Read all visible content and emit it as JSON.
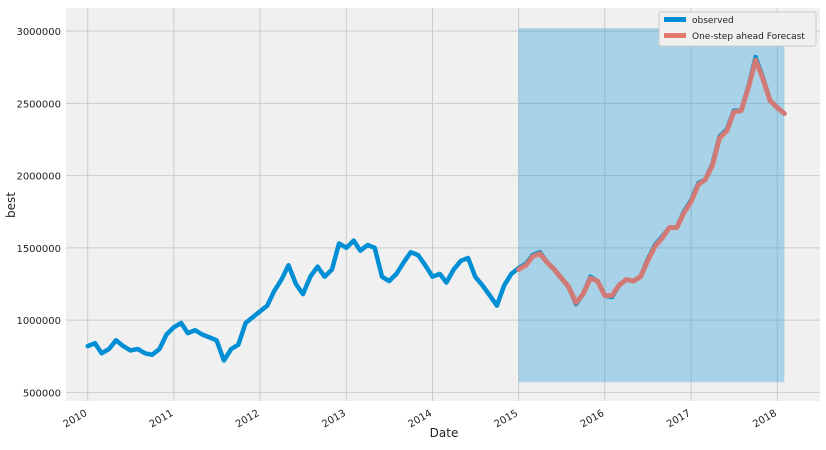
{
  "chart_data": {
    "type": "line",
    "xlabel": "Date",
    "ylabel": "best",
    "xlim": [
      "2009-10-01",
      "2018-07-01"
    ],
    "ylim": [
      440000,
      3160000
    ],
    "grid": true,
    "legend_position": "top-right",
    "x_ticks": [
      "2010",
      "2011",
      "2012",
      "2013",
      "2014",
      "2015",
      "2016",
      "2017",
      "2018"
    ],
    "y_ticks": [
      500000,
      1000000,
      1500000,
      2000000,
      2500000,
      3000000
    ],
    "y_tick_labels": [
      "500000",
      "1000000",
      "1500000",
      "2000000",
      "2500000",
      "3000000"
    ],
    "confidence_band": {
      "start": "2015-01-01",
      "end": "2018-01-31",
      "lower": 570000,
      "upper": 3020000
    },
    "series": [
      {
        "name": "observed",
        "color": "#008fd5",
        "points": [
          [
            "2010-01-01",
            820000
          ],
          [
            "2010-02-01",
            840000
          ],
          [
            "2010-03-01",
            770000
          ],
          [
            "2010-04-01",
            800000
          ],
          [
            "2010-05-01",
            860000
          ],
          [
            "2010-06-01",
            820000
          ],
          [
            "2010-07-01",
            790000
          ],
          [
            "2010-08-01",
            800000
          ],
          [
            "2010-09-01",
            770000
          ],
          [
            "2010-10-01",
            760000
          ],
          [
            "2010-11-01",
            800000
          ],
          [
            "2010-12-01",
            900000
          ],
          [
            "2011-01-01",
            950000
          ],
          [
            "2011-02-01",
            980000
          ],
          [
            "2011-03-01",
            910000
          ],
          [
            "2011-04-01",
            930000
          ],
          [
            "2011-05-01",
            900000
          ],
          [
            "2011-06-01",
            880000
          ],
          [
            "2011-07-01",
            860000
          ],
          [
            "2011-08-01",
            720000
          ],
          [
            "2011-09-01",
            800000
          ],
          [
            "2011-10-01",
            830000
          ],
          [
            "2011-11-01",
            980000
          ],
          [
            "2011-12-01",
            1020000
          ],
          [
            "2012-01-01",
            1060000
          ],
          [
            "2012-02-01",
            1100000
          ],
          [
            "2012-03-01",
            1200000
          ],
          [
            "2012-04-01",
            1280000
          ],
          [
            "2012-05-01",
            1380000
          ],
          [
            "2012-06-01",
            1250000
          ],
          [
            "2012-07-01",
            1180000
          ],
          [
            "2012-08-01",
            1300000
          ],
          [
            "2012-09-01",
            1370000
          ],
          [
            "2012-10-01",
            1300000
          ],
          [
            "2012-11-01",
            1350000
          ],
          [
            "2012-12-01",
            1530000
          ],
          [
            "2013-01-01",
            1500000
          ],
          [
            "2013-02-01",
            1550000
          ],
          [
            "2013-03-01",
            1480000
          ],
          [
            "2013-04-01",
            1520000
          ],
          [
            "2013-05-01",
            1500000
          ],
          [
            "2013-06-01",
            1300000
          ],
          [
            "2013-07-01",
            1270000
          ],
          [
            "2013-08-01",
            1320000
          ],
          [
            "2013-09-01",
            1400000
          ],
          [
            "2013-10-01",
            1470000
          ],
          [
            "2013-11-01",
            1450000
          ],
          [
            "2013-12-01",
            1380000
          ],
          [
            "2014-01-01",
            1300000
          ],
          [
            "2014-02-01",
            1320000
          ],
          [
            "2014-03-01",
            1260000
          ],
          [
            "2014-04-01",
            1350000
          ],
          [
            "2014-05-01",
            1410000
          ],
          [
            "2014-06-01",
            1430000
          ],
          [
            "2014-07-01",
            1300000
          ],
          [
            "2014-08-01",
            1240000
          ],
          [
            "2014-09-01",
            1170000
          ],
          [
            "2014-10-01",
            1100000
          ],
          [
            "2014-11-01",
            1240000
          ],
          [
            "2014-12-01",
            1320000
          ],
          [
            "2015-01-01",
            1360000
          ],
          [
            "2015-02-01",
            1390000
          ],
          [
            "2015-03-01",
            1450000
          ],
          [
            "2015-04-01",
            1470000
          ],
          [
            "2015-05-01",
            1400000
          ],
          [
            "2015-06-01",
            1350000
          ],
          [
            "2015-07-01",
            1290000
          ],
          [
            "2015-08-01",
            1230000
          ],
          [
            "2015-09-01",
            1110000
          ],
          [
            "2015-10-01",
            1180000
          ],
          [
            "2015-11-01",
            1300000
          ],
          [
            "2015-12-01",
            1270000
          ],
          [
            "2016-01-01",
            1170000
          ],
          [
            "2016-02-01",
            1160000
          ],
          [
            "2016-03-01",
            1240000
          ],
          [
            "2016-04-01",
            1280000
          ],
          [
            "2016-05-01",
            1270000
          ],
          [
            "2016-06-01",
            1300000
          ],
          [
            "2016-07-01",
            1420000
          ],
          [
            "2016-08-01",
            1520000
          ],
          [
            "2016-09-01",
            1580000
          ],
          [
            "2016-10-01",
            1640000
          ],
          [
            "2016-11-01",
            1640000
          ],
          [
            "2016-12-01",
            1750000
          ],
          [
            "2017-01-01",
            1830000
          ],
          [
            "2017-02-01",
            1950000
          ],
          [
            "2017-03-01",
            1970000
          ],
          [
            "2017-04-01",
            2080000
          ],
          [
            "2017-05-01",
            2270000
          ],
          [
            "2017-06-01",
            2320000
          ],
          [
            "2017-07-01",
            2450000
          ],
          [
            "2017-08-01",
            2450000
          ],
          [
            "2017-09-01",
            2620000
          ],
          [
            "2017-10-01",
            2820000
          ],
          [
            "2017-11-01",
            2680000
          ],
          [
            "2017-12-01",
            2520000
          ],
          [
            "2018-01-01",
            2470000
          ],
          [
            "2018-01-31",
            2430000
          ]
        ]
      },
      {
        "name": "One-step ahead Forecast",
        "color": "#e5786d",
        "points": [
          [
            "2015-01-01",
            1350000
          ],
          [
            "2015-02-01",
            1380000
          ],
          [
            "2015-03-01",
            1440000
          ],
          [
            "2015-04-01",
            1460000
          ],
          [
            "2015-05-01",
            1400000
          ],
          [
            "2015-06-01",
            1350000
          ],
          [
            "2015-07-01",
            1290000
          ],
          [
            "2015-08-01",
            1230000
          ],
          [
            "2015-09-01",
            1120000
          ],
          [
            "2015-10-01",
            1180000
          ],
          [
            "2015-11-01",
            1290000
          ],
          [
            "2015-12-01",
            1270000
          ],
          [
            "2016-01-01",
            1170000
          ],
          [
            "2016-02-01",
            1170000
          ],
          [
            "2016-03-01",
            1240000
          ],
          [
            "2016-04-01",
            1280000
          ],
          [
            "2016-05-01",
            1270000
          ],
          [
            "2016-06-01",
            1300000
          ],
          [
            "2016-07-01",
            1410000
          ],
          [
            "2016-08-01",
            1510000
          ],
          [
            "2016-09-01",
            1570000
          ],
          [
            "2016-10-01",
            1640000
          ],
          [
            "2016-11-01",
            1640000
          ],
          [
            "2016-12-01",
            1740000
          ],
          [
            "2017-01-01",
            1820000
          ],
          [
            "2017-02-01",
            1940000
          ],
          [
            "2017-03-01",
            1970000
          ],
          [
            "2017-04-01",
            2070000
          ],
          [
            "2017-05-01",
            2260000
          ],
          [
            "2017-06-01",
            2310000
          ],
          [
            "2017-07-01",
            2440000
          ],
          [
            "2017-08-01",
            2450000
          ],
          [
            "2017-09-01",
            2610000
          ],
          [
            "2017-10-01",
            2800000
          ],
          [
            "2017-11-01",
            2670000
          ],
          [
            "2017-12-01",
            2520000
          ],
          [
            "2018-01-01",
            2470000
          ],
          [
            "2018-01-31",
            2430000
          ]
        ]
      }
    ]
  }
}
